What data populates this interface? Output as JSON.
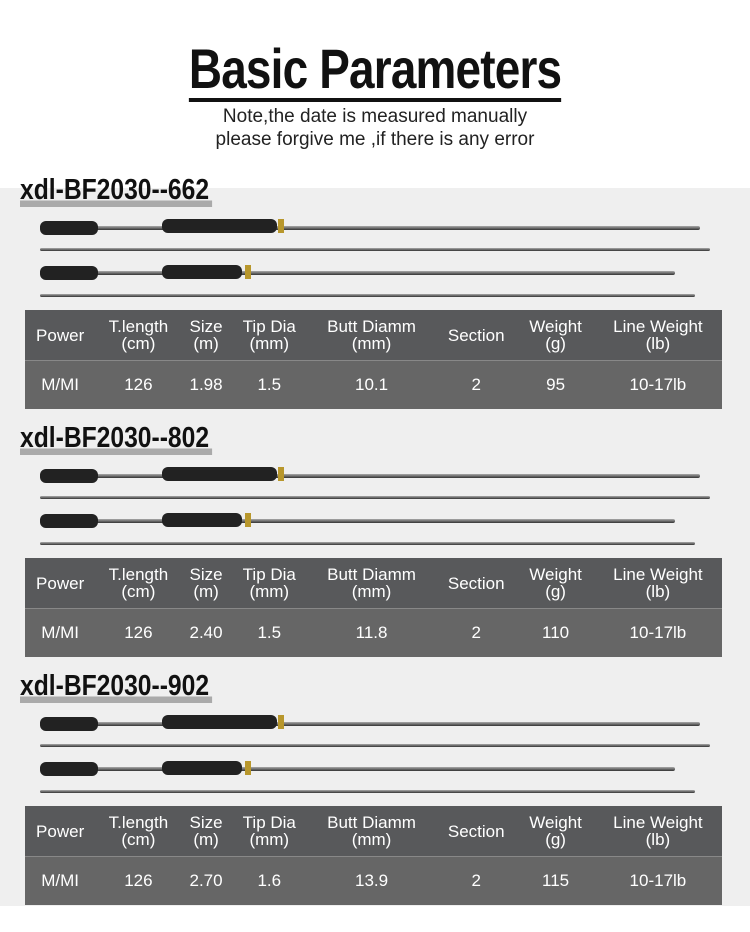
{
  "title": "Basic Parameters",
  "note_lines": [
    "Note,the date is measured manually",
    "please forgive me ,if there is any error"
  ],
  "headers": [
    [
      "Power",
      ""
    ],
    [
      "T.length",
      "(cm)"
    ],
    [
      "Size",
      "(m)"
    ],
    [
      "Tip Dia",
      "(mm)"
    ],
    [
      "Butt Diamm",
      "(mm)"
    ],
    [
      "Section",
      ""
    ],
    [
      "Weight",
      "(g)"
    ],
    [
      "Line Weight",
      "(lb)"
    ]
  ],
  "products": [
    {
      "model": "xdl-BF2030--662",
      "row": [
        "M/MI",
        "126",
        "1.98",
        "1.5",
        "10.1",
        "2",
        "95",
        "10-17lb"
      ]
    },
    {
      "model": "xdl-BF2030--802",
      "row": [
        "M/MI",
        "126",
        "2.40",
        "1.5",
        "11.8",
        "2",
        "110",
        "10-17lb"
      ]
    },
    {
      "model": "xdl-BF2030--902",
      "row": [
        "M/MI",
        "126",
        "2.70",
        "1.6",
        "13.9",
        "2",
        "115",
        "10-17lb"
      ]
    }
  ]
}
